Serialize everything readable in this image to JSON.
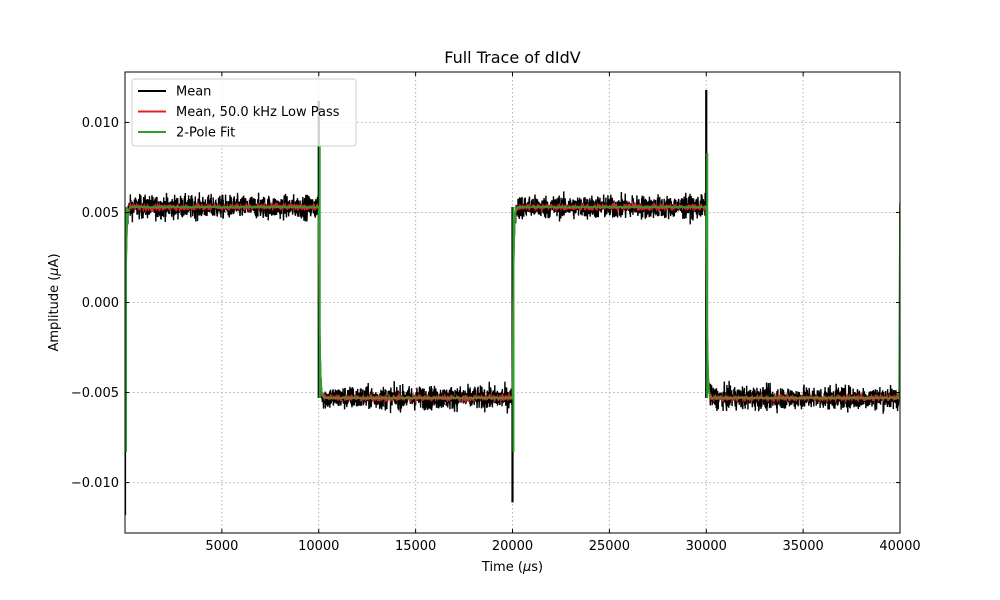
{
  "chart_data": {
    "type": "line",
    "title": "Full Trace of dIdV",
    "xlabel_prefix": "Time (",
    "xlabel_unit_italic": "μ",
    "xlabel_suffix": "s)",
    "ylabel_prefix": "Amplitude (",
    "ylabel_unit_italic": "μ",
    "ylabel_suffix": "A)",
    "xlim": [
      0,
      40000
    ],
    "ylim": [
      -0.0128,
      0.0128
    ],
    "xticks": [
      5000,
      10000,
      15000,
      20000,
      25000,
      30000,
      35000,
      40000
    ],
    "xtick_labels": [
      "5000",
      "10000",
      "15000",
      "20000",
      "25000",
      "30000",
      "35000",
      "40000"
    ],
    "yticks": [
      -0.01,
      -0.005,
      0.0,
      0.005,
      0.01
    ],
    "ytick_labels": [
      "−0.010",
      "−0.005",
      "0.000",
      "0.005",
      "0.010"
    ],
    "grid": true,
    "legend_position": "top-left",
    "series": [
      {
        "name": "Mean",
        "color": "#000000",
        "kind": "square_wave_noisy",
        "period": 20000,
        "high_level": 0.0053,
        "low_level": -0.0053,
        "noise_band": 0.0012,
        "transitions": [
          0,
          10000,
          20000,
          30000
        ],
        "spikes": [
          {
            "x": 0,
            "y": -0.0118
          },
          {
            "x": 10000,
            "y": 0.0112
          },
          {
            "x": 20000,
            "y": -0.0111
          },
          {
            "x": 30000,
            "y": 0.0118
          }
        ]
      },
      {
        "name": "Mean, 50.0 kHz Low Pass",
        "color": "#d62728",
        "kind": "square_wave_filtered",
        "high_level": 0.0053,
        "low_level": -0.0053,
        "noise_band": 0.00015
      },
      {
        "name": "2-Pole Fit",
        "color": "#2ca02c",
        "kind": "square_wave_fit",
        "high_level": 0.0053,
        "low_level": -0.0053,
        "spikes": [
          {
            "x": 0,
            "y": -0.0083
          },
          {
            "x": 10000,
            "y": 0.0087
          },
          {
            "x": 20000,
            "y": -0.0083
          },
          {
            "x": 30000,
            "y": 0.0083
          }
        ]
      }
    ]
  }
}
